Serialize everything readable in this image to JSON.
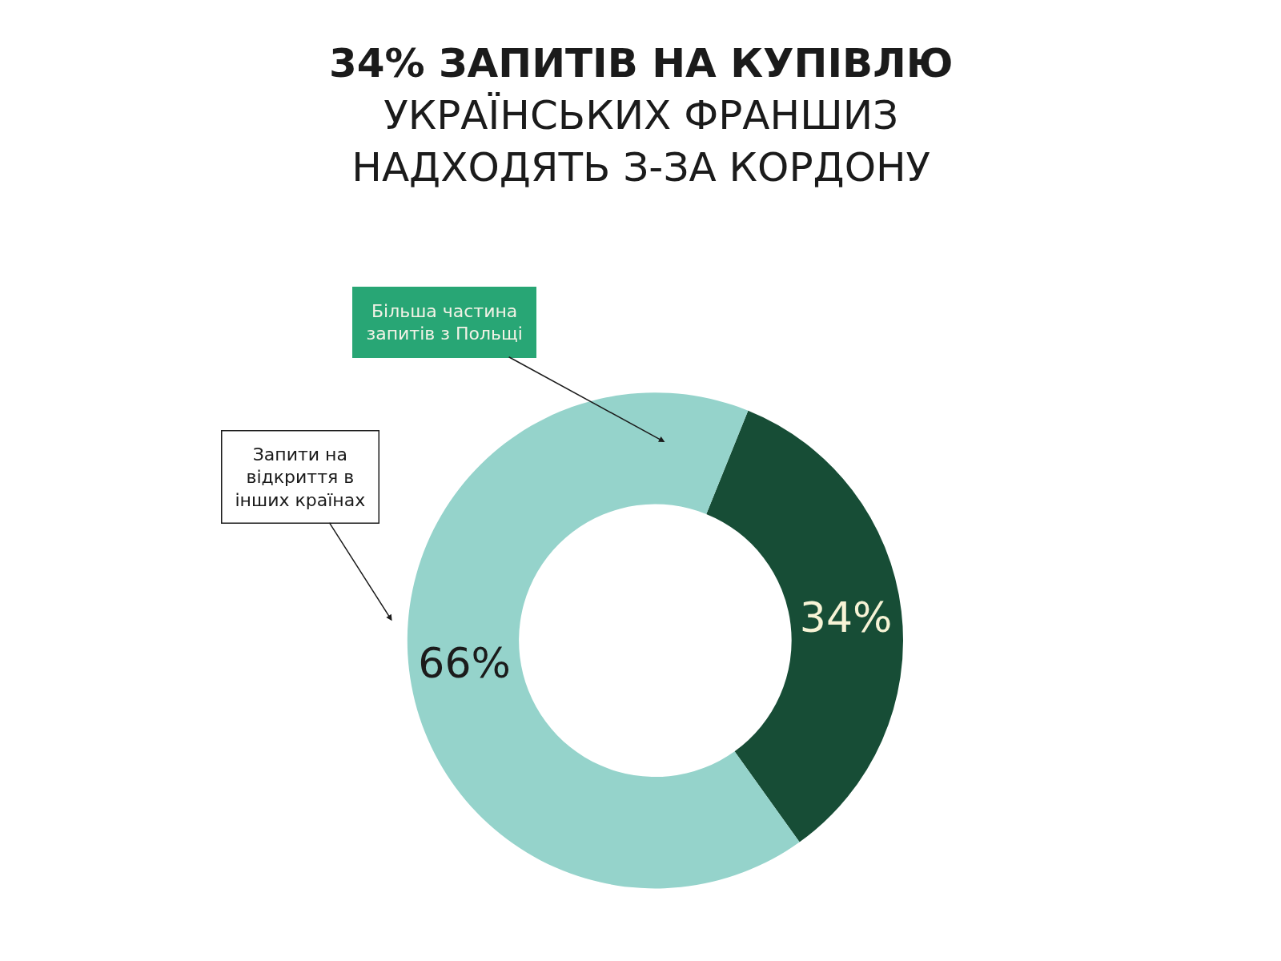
{
  "chart_data": {
    "type": "donut",
    "title": "34% ЗАПИТІВ НА КУПІВЛЮ\nУКРАЇНСЬКИХ ФРАНШИЗ\nНАДХОДЯТЬ З-ЗА КОРДОНУ",
    "categories": [
      null,
      null
    ],
    "values": [
      34,
      66
    ],
    "colors": [
      "#174d36",
      "#95d3cb"
    ],
    "value_labels": [
      "34%",
      "66%"
    ],
    "annotations": [
      "Більша частина\nзапитів з Польщі",
      "Запити на\nвідкриття в\nінших країнах"
    ],
    "legend": false
  }
}
